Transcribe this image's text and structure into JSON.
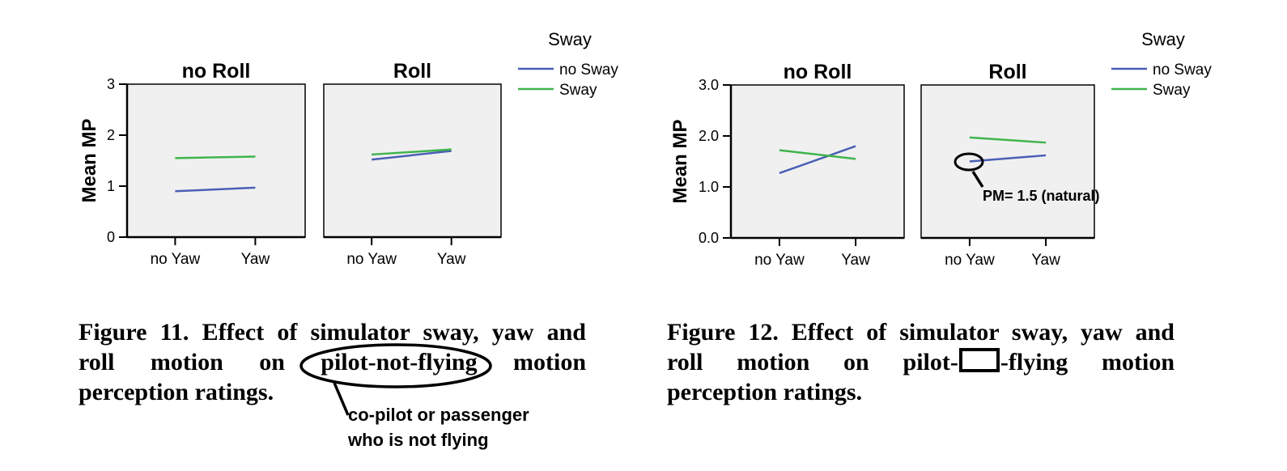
{
  "chart_data": [
    {
      "type": "line",
      "ylabel": "Mean MP",
      "ylim": [
        0,
        3
      ],
      "yticks": [
        "0",
        "1",
        "2",
        "3"
      ],
      "legend": {
        "title": "Sway",
        "placement": "top-right"
      },
      "categories": [
        "no Yaw",
        "Yaw"
      ],
      "panels": [
        {
          "title": "no Roll",
          "series": [
            {
              "name": "no Sway",
              "color": "#4a5fb5",
              "values": [
                0.9,
                0.97
              ]
            },
            {
              "name": "Sway",
              "color": "#3fb44c",
              "values": [
                1.55,
                1.58
              ]
            }
          ]
        },
        {
          "title": "Roll",
          "series": [
            {
              "name": "no Sway",
              "color": "#4a5fb5",
              "values": [
                1.52,
                1.69
              ]
            },
            {
              "name": "Sway",
              "color": "#3fb44c",
              "values": [
                1.62,
                1.72
              ]
            }
          ]
        }
      ]
    },
    {
      "type": "line",
      "ylabel": "Mean MP",
      "ylim": [
        0,
        3
      ],
      "yticks": [
        "0.0",
        "1.0",
        "2.0",
        "3.0"
      ],
      "legend": {
        "title": "Sway",
        "placement": "top-right"
      },
      "categories": [
        "no Yaw",
        "Yaw"
      ],
      "panels": [
        {
          "title": "no Roll",
          "series": [
            {
              "name": "no Sway",
              "color": "#4a5fb5",
              "values": [
                1.27,
                1.8
              ]
            },
            {
              "name": "Sway",
              "color": "#3fb44c",
              "values": [
                1.72,
                1.55
              ]
            }
          ]
        },
        {
          "title": "Roll",
          "series": [
            {
              "name": "no Sway",
              "color": "#4a5fb5",
              "values": [
                1.5,
                1.62
              ]
            },
            {
              "name": "Sway",
              "color": "#3fb44c",
              "values": [
                1.97,
                1.87
              ]
            }
          ]
        }
      ],
      "annotation": "PM= 1.5 (natural)"
    }
  ],
  "figure11": {
    "caption_lines": [
      "Figure 11. Effect of simulator sway, yaw and",
      [
        "roll",
        "motion",
        "on",
        "pilot-not-flying",
        "motion"
      ],
      "perception ratings."
    ],
    "note_lines": [
      "co-pilot or passenger",
      "who is not flying"
    ]
  },
  "figure12": {
    "caption_lines": [
      "Figure 12. Effect of simulator sway, yaw and",
      [
        "roll",
        "motion",
        "on",
        "pilot-",
        "-flying",
        "motion"
      ],
      "perception ratings."
    ]
  },
  "colors": {
    "panel_bg": "#f0f0f0",
    "no_sway": "#4a5fb5",
    "sway": "#3fb44c"
  }
}
